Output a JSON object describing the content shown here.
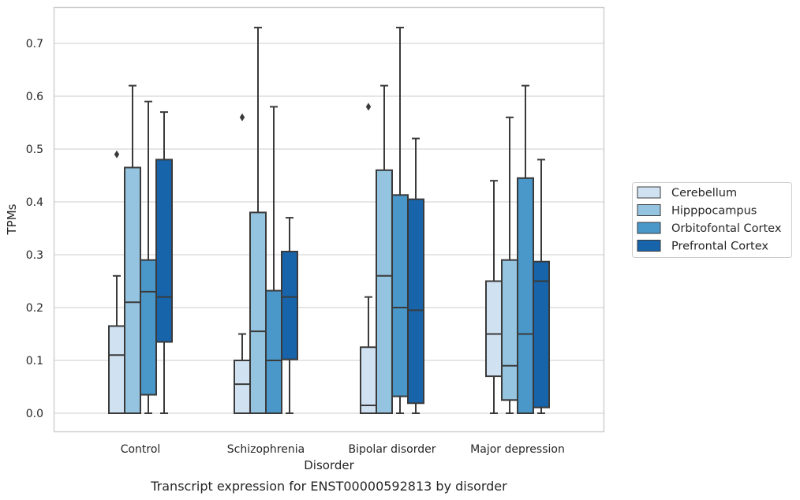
{
  "chart_data": {
    "type": "box",
    "caption": "Transcript expression for ENST00000592813 by disorder",
    "xlabel": "Disorder",
    "ylabel": "TPMs",
    "ylim": [
      -0.035,
      0.76
    ],
    "yticks": [
      "0.0",
      "0.1",
      "0.2",
      "0.3",
      "0.4",
      "0.5",
      "0.6",
      "0.7"
    ],
    "grid": "horizontal",
    "legend_position": "right",
    "categories": [
      "Control",
      "Schizophrenia",
      "Bipolar disorder",
      "Major depression"
    ],
    "series": [
      {
        "name": "Cerebellum",
        "color": "#d0e1f2",
        "boxes": [
          {
            "whislo": 0.0,
            "q1": 0.0,
            "med": 0.11,
            "q3": 0.165,
            "whishi": 0.26,
            "fliers": [
              0.49
            ]
          },
          {
            "whislo": 0.0,
            "q1": 0.0,
            "med": 0.055,
            "q3": 0.1,
            "whishi": 0.15,
            "fliers": [
              0.56
            ]
          },
          {
            "whislo": 0.0,
            "q1": 0.0,
            "med": 0.015,
            "q3": 0.125,
            "whishi": 0.22,
            "fliers": [
              0.58
            ]
          },
          {
            "whislo": 0.0,
            "q1": 0.07,
            "med": 0.15,
            "q3": 0.25,
            "whishi": 0.44,
            "fliers": []
          }
        ]
      },
      {
        "name": "Hipppocampus",
        "color": "#94c4df",
        "boxes": [
          {
            "whislo": 0.0,
            "q1": 0.0,
            "med": 0.21,
            "q3": 0.465,
            "whishi": 0.62,
            "fliers": []
          },
          {
            "whislo": 0.0,
            "q1": 0.0,
            "med": 0.155,
            "q3": 0.38,
            "whishi": 0.73,
            "fliers": []
          },
          {
            "whislo": 0.0,
            "q1": 0.0,
            "med": 0.26,
            "q3": 0.46,
            "whishi": 0.62,
            "fliers": []
          },
          {
            "whislo": 0.0,
            "q1": 0.025,
            "med": 0.09,
            "q3": 0.29,
            "whishi": 0.56,
            "fliers": []
          }
        ]
      },
      {
        "name": "Orbitofontal Cortex",
        "color": "#4a98c9",
        "boxes": [
          {
            "whislo": 0.0,
            "q1": 0.035,
            "med": 0.23,
            "q3": 0.29,
            "whishi": 0.59,
            "fliers": []
          },
          {
            "whislo": 0.0,
            "q1": 0.0,
            "med": 0.1,
            "q3": 0.232,
            "whishi": 0.58,
            "fliers": []
          },
          {
            "whislo": 0.0,
            "q1": 0.032,
            "med": 0.2,
            "q3": 0.413,
            "whishi": 0.73,
            "fliers": []
          },
          {
            "whislo": 0.0,
            "q1": 0.0,
            "med": 0.15,
            "q3": 0.445,
            "whishi": 0.62,
            "fliers": []
          }
        ]
      },
      {
        "name": "Prefrontal Cortex",
        "color": "#1764ab",
        "boxes": [
          {
            "whislo": 0.0,
            "q1": 0.135,
            "med": 0.22,
            "q3": 0.48,
            "whishi": 0.57,
            "fliers": []
          },
          {
            "whislo": 0.0,
            "q1": 0.102,
            "med": 0.22,
            "q3": 0.306,
            "whishi": 0.37,
            "fliers": []
          },
          {
            "whislo": 0.0,
            "q1": 0.019,
            "med": 0.195,
            "q3": 0.405,
            "whishi": 0.52,
            "fliers": []
          },
          {
            "whislo": 0.0,
            "q1": 0.011,
            "med": 0.25,
            "q3": 0.287,
            "whishi": 0.48,
            "fliers": []
          }
        ]
      }
    ]
  }
}
